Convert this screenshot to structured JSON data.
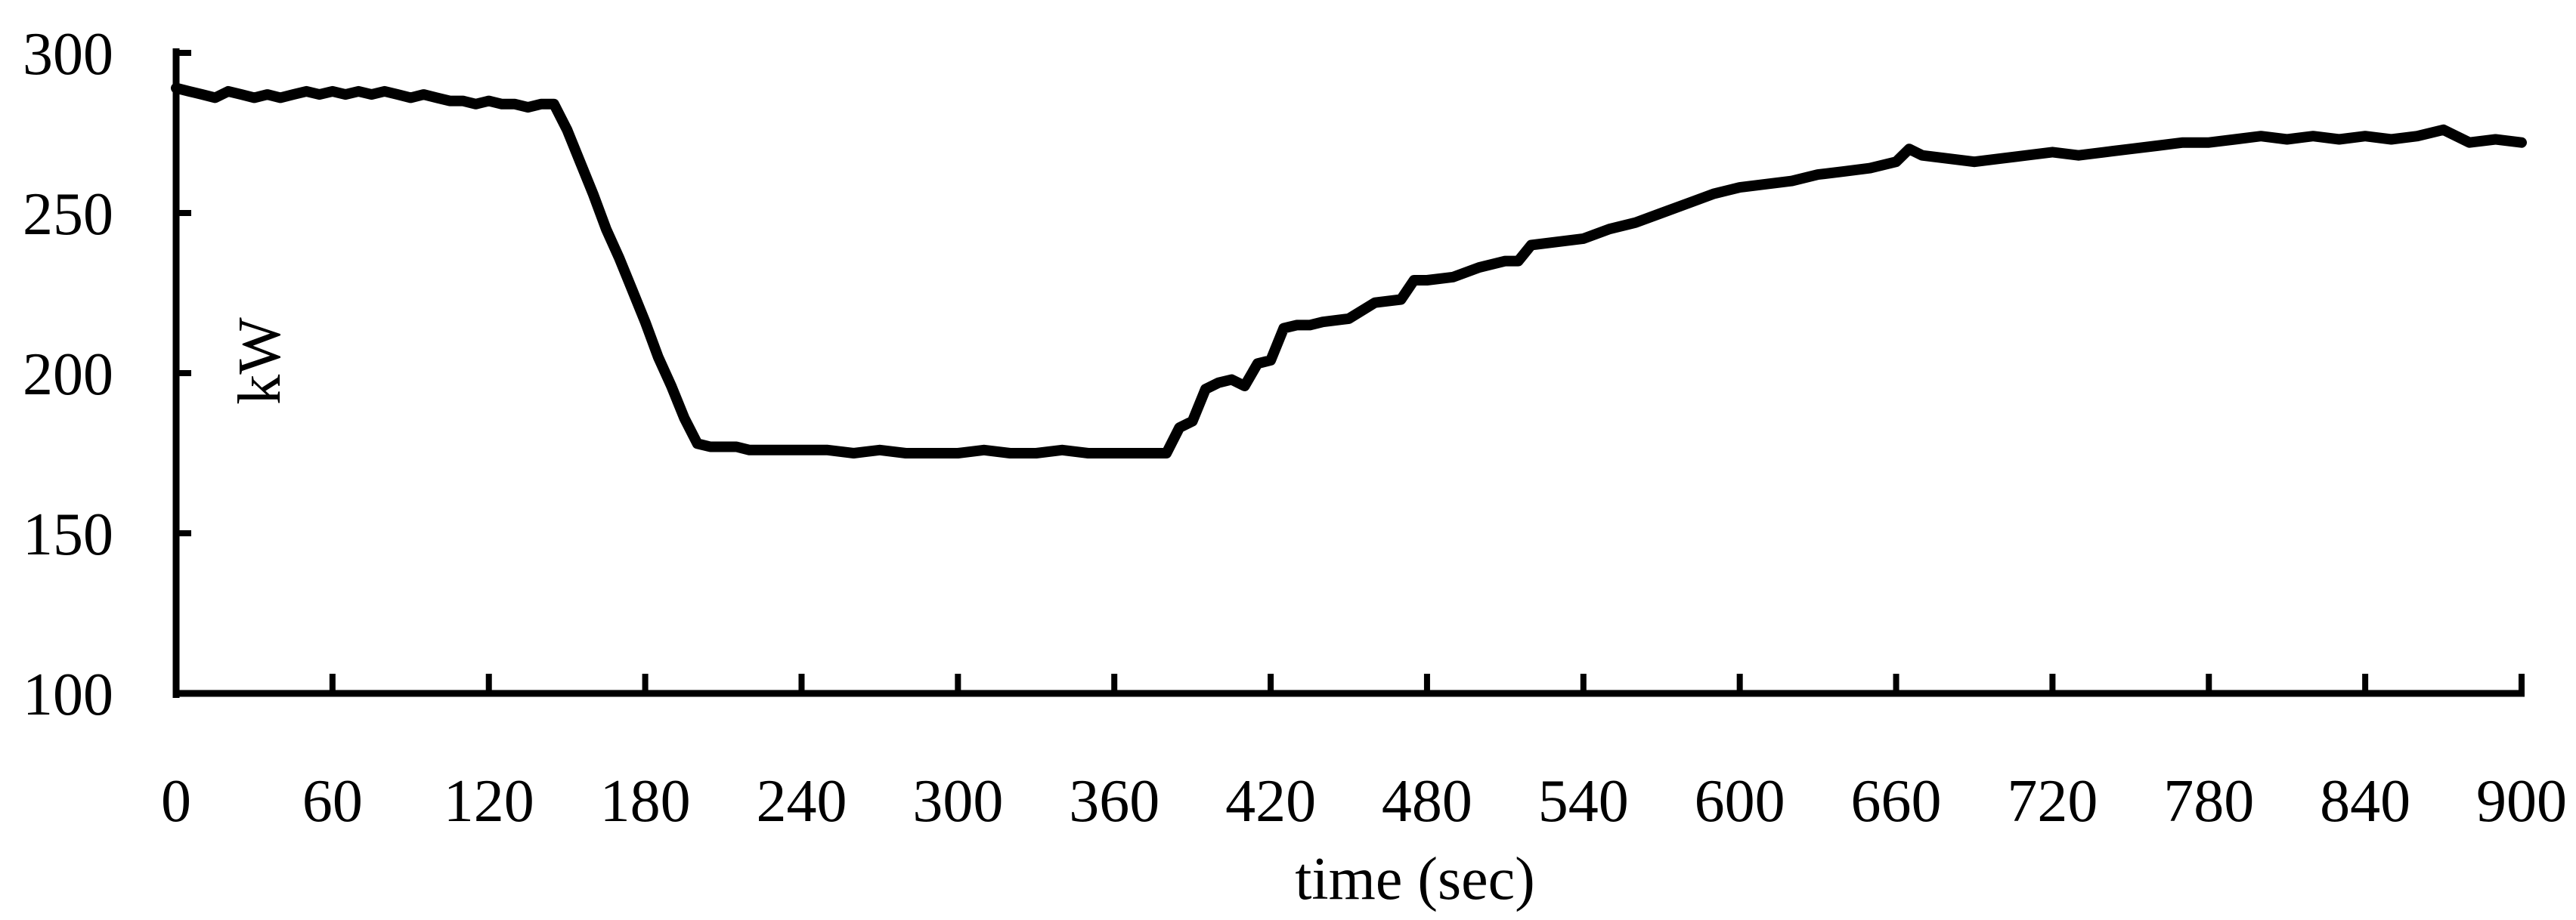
{
  "chart_data": {
    "type": "line",
    "title": "",
    "xlabel": "time (sec)",
    "ylabel": "kW",
    "xlim": [
      0,
      900
    ],
    "ylim": [
      100,
      300
    ],
    "x_ticks": [
      0,
      60,
      120,
      180,
      240,
      300,
      360,
      420,
      480,
      540,
      600,
      660,
      720,
      780,
      840,
      900
    ],
    "y_ticks": [
      100,
      150,
      200,
      250,
      300
    ],
    "grid": false,
    "legend": "none",
    "color": "#000000",
    "series": [
      {
        "x": [
          0,
          5,
          10,
          15,
          20,
          25,
          30,
          35,
          40,
          45,
          50,
          55,
          60,
          65,
          70,
          75,
          80,
          85,
          90,
          95,
          100,
          105,
          110,
          115,
          120,
          125,
          130,
          135,
          140,
          145,
          150,
          155,
          160,
          165,
          170,
          175,
          180,
          185,
          190,
          195,
          200,
          205,
          210,
          215,
          220,
          230,
          240,
          250,
          260,
          270,
          280,
          290,
          300,
          310,
          320,
          330,
          340,
          350,
          360,
          370,
          380,
          385,
          390,
          395,
          400,
          405,
          410,
          415,
          420,
          425,
          430,
          435,
          440,
          450,
          460,
          470,
          475,
          480,
          490,
          500,
          510,
          515,
          520,
          530,
          540,
          550,
          560,
          570,
          580,
          590,
          600,
          610,
          620,
          630,
          640,
          650,
          660,
          665,
          670,
          680,
          690,
          700,
          710,
          720,
          730,
          740,
          750,
          760,
          770,
          780,
          790,
          800,
          810,
          820,
          830,
          840,
          850,
          860,
          870,
          880,
          890,
          900
        ],
        "values": [
          289,
          288,
          287,
          286,
          288,
          287,
          286,
          287,
          286,
          287,
          288,
          287,
          288,
          287,
          288,
          287,
          288,
          287,
          286,
          287,
          286,
          285,
          285,
          284,
          285,
          284,
          284,
          283,
          284,
          284,
          276,
          266,
          256,
          245,
          236,
          226,
          216,
          205,
          196,
          186,
          178,
          177,
          177,
          177,
          176,
          176,
          176,
          176,
          175,
          176,
          175,
          175,
          175,
          176,
          175,
          175,
          176,
          175,
          175,
          175,
          175,
          183,
          185,
          195,
          197,
          198,
          196,
          203,
          204,
          214,
          215,
          215,
          216,
          217,
          222,
          223,
          229,
          229,
          230,
          233,
          235,
          235,
          240,
          241,
          242,
          245,
          247,
          250,
          253,
          256,
          258,
          259,
          260,
          262,
          263,
          264,
          266,
          270,
          268,
          267,
          266,
          267,
          268,
          269,
          268,
          269,
          270,
          271,
          272,
          272,
          273,
          274,
          273,
          274,
          273,
          274,
          273,
          274,
          276,
          272,
          273,
          272
        ]
      }
    ]
  }
}
